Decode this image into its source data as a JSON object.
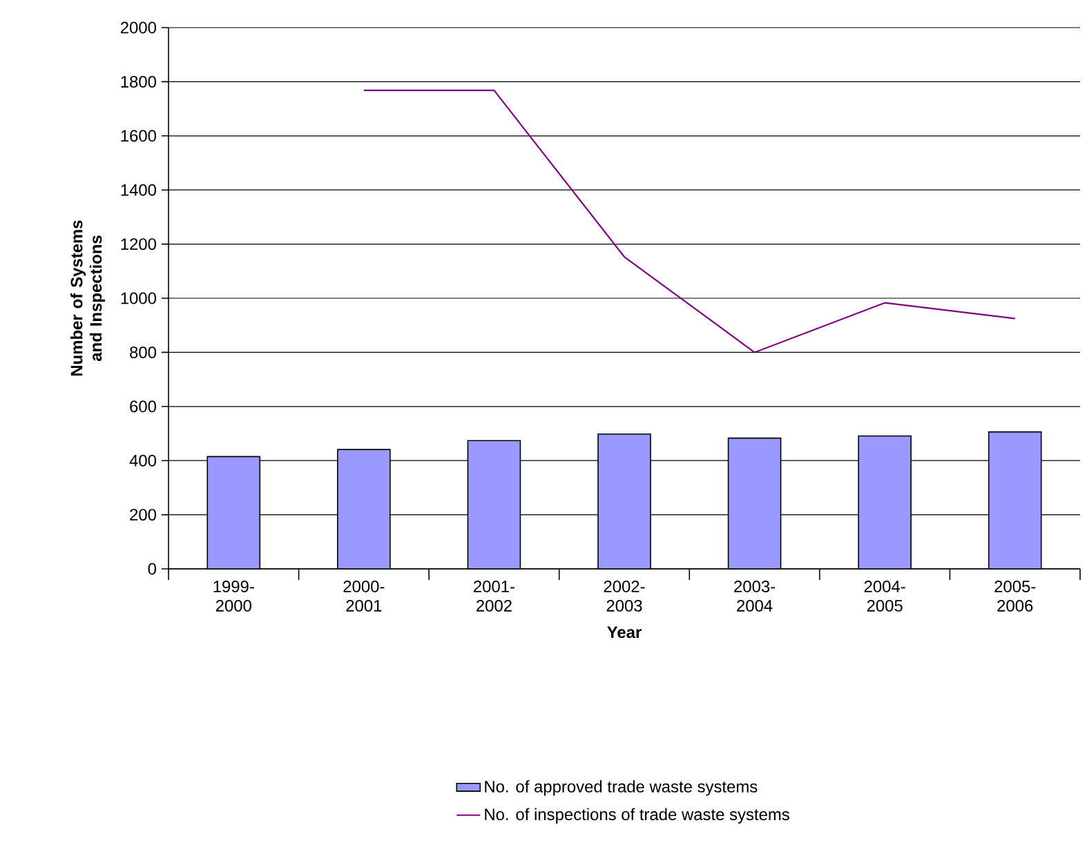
{
  "chart_data": {
    "type": "bar",
    "xlabel": "Year",
    "ylabel": "Number of Systems and Inspections",
    "categories": [
      "1999-2000",
      "2000-2001",
      "2001-2002",
      "2002-2003",
      "2003-2004",
      "2004-2005",
      "2005-2006"
    ],
    "series": [
      {
        "name": "No. of approved trade waste systems",
        "color": "#9999ff",
        "values": [
          415,
          441,
          474,
          498,
          483,
          491,
          506
        ]
      },
      {
        "name": "No. of inspections of trade waste systems",
        "type": "line",
        "color": "#800080",
        "values": [
          null,
          1768,
          1768,
          1153,
          800,
          983,
          925
        ]
      }
    ],
    "ylim": [
      0,
      2000
    ],
    "yticks": [
      0,
      200,
      400,
      600,
      800,
      1000,
      1200,
      1400,
      1600,
      1800,
      2000
    ],
    "grid": "y",
    "legend": "bottom"
  }
}
